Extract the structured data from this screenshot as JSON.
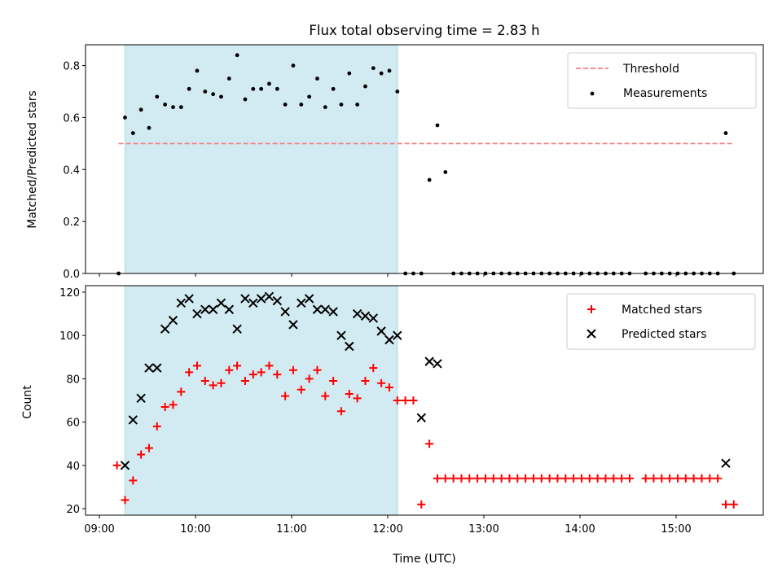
{
  "chart_data": [
    {
      "type": "scatter",
      "title": "Flux total observing time = 2.83 h",
      "xlabel": "",
      "ylabel": "Matched/Predicted stars",
      "ylim": [
        0,
        0.88
      ],
      "yticks": [
        "0.0",
        "0.2",
        "0.4",
        "0.6",
        "0.8"
      ],
      "xticks_shown": false,
      "shaded_interval_utc": [
        "09:16",
        "12:06"
      ],
      "shade_color": "#add8e6",
      "legend_position": "top-right",
      "threshold": {
        "name": "Threshold",
        "value": 0.5,
        "x_range": [
          "09:12",
          "15:36"
        ],
        "color": "#f08080"
      },
      "series": [
        {
          "name": "Measurements",
          "color": "#000000",
          "x": [
            "09:12",
            "09:16",
            "09:21",
            "09:26",
            "09:31",
            "09:36",
            "09:41",
            "09:46",
            "09:51",
            "09:56",
            "10:01",
            "10:06",
            "10:11",
            "10:16",
            "10:21",
            "10:26",
            "10:31",
            "10:36",
            "10:41",
            "10:46",
            "10:51",
            "10:56",
            "11:01",
            "11:06",
            "11:11",
            "11:16",
            "11:21",
            "11:26",
            "11:31",
            "11:36",
            "11:41",
            "11:46",
            "11:51",
            "11:56",
            "12:01",
            "12:06",
            "12:11",
            "12:16",
            "12:21",
            "12:26",
            "12:31",
            "12:36",
            "12:41",
            "12:46",
            "12:51",
            "12:56",
            "13:01",
            "13:06",
            "13:11",
            "13:16",
            "13:21",
            "13:26",
            "13:31",
            "13:36",
            "13:41",
            "13:46",
            "13:51",
            "13:56",
            "14:01",
            "14:06",
            "14:11",
            "14:16",
            "14:21",
            "14:26",
            "14:31",
            "14:41",
            "14:46",
            "14:51",
            "14:56",
            "15:01",
            "15:06",
            "15:11",
            "15:16",
            "15:21",
            "15:26",
            "15:31",
            "15:36"
          ],
          "y": [
            0.0,
            0.6,
            0.54,
            0.63,
            0.56,
            0.68,
            0.65,
            0.64,
            0.64,
            0.71,
            0.78,
            0.7,
            0.69,
            0.68,
            0.75,
            0.84,
            0.67,
            0.71,
            0.71,
            0.73,
            0.71,
            0.65,
            0.8,
            0.65,
            0.68,
            0.75,
            0.64,
            0.71,
            0.65,
            0.77,
            0.65,
            0.72,
            0.79,
            0.77,
            0.78,
            0.7,
            0.0,
            0.0,
            0.0,
            0.36,
            0.57,
            0.39,
            0.0,
            0.0,
            0.0,
            0.0,
            0.0,
            0.0,
            0.0,
            0.0,
            0.0,
            0.0,
            0.0,
            0.0,
            0.0,
            0.0,
            0.0,
            0.0,
            0.0,
            0.0,
            0.0,
            0.0,
            0.0,
            0.0,
            0.0,
            0.0,
            0.0,
            0.0,
            0.0,
            0.0,
            0.0,
            0.0,
            0.0,
            0.0,
            0.0,
            0.54,
            0.0
          ]
        }
      ]
    },
    {
      "type": "scatter",
      "title": "",
      "xlabel": "Time (UTC)",
      "ylabel": "Count",
      "ylim": [
        17,
        123
      ],
      "yticks": [
        "20",
        "40",
        "60",
        "80",
        "100",
        "120"
      ],
      "xticks": [
        "09:00",
        "10:00",
        "11:00",
        "12:00",
        "13:00",
        "14:00",
        "15:00"
      ],
      "shaded_interval_utc": [
        "09:16",
        "12:06"
      ],
      "shade_color": "#add8e6",
      "legend_position": "top-right",
      "series": [
        {
          "name": "Matched stars",
          "marker": "plus",
          "color": "#ff0000",
          "x": [
            "09:11",
            "09:16",
            "09:21",
            "09:26",
            "09:31",
            "09:36",
            "09:41",
            "09:46",
            "09:51",
            "09:56",
            "10:01",
            "10:06",
            "10:11",
            "10:16",
            "10:21",
            "10:26",
            "10:31",
            "10:36",
            "10:41",
            "10:46",
            "10:51",
            "10:56",
            "11:01",
            "11:06",
            "11:11",
            "11:16",
            "11:21",
            "11:26",
            "11:31",
            "11:36",
            "11:41",
            "11:46",
            "11:51",
            "11:56",
            "12:01",
            "12:06",
            "12:11",
            "12:16",
            "12:21",
            "12:26",
            "12:31",
            "12:36",
            "12:41",
            "12:46",
            "12:51",
            "12:56",
            "13:01",
            "13:06",
            "13:11",
            "13:16",
            "13:21",
            "13:26",
            "13:31",
            "13:36",
            "13:41",
            "13:46",
            "13:51",
            "13:56",
            "14:01",
            "14:06",
            "14:11",
            "14:16",
            "14:21",
            "14:26",
            "14:31",
            "14:41",
            "14:46",
            "14:51",
            "14:56",
            "15:01",
            "15:06",
            "15:11",
            "15:16",
            "15:21",
            "15:26",
            "15:31",
            "15:36"
          ],
          "y": [
            40,
            24,
            33,
            45,
            48,
            58,
            67,
            68,
            74,
            83,
            86,
            79,
            77,
            78,
            84,
            86,
            79,
            82,
            83,
            86,
            82,
            72,
            84,
            75,
            80,
            84,
            72,
            79,
            65,
            73,
            71,
            79,
            85,
            78,
            76,
            70,
            70,
            70,
            22,
            50,
            34,
            34,
            34,
            34,
            34,
            34,
            34,
            34,
            34,
            34,
            34,
            34,
            34,
            34,
            34,
            34,
            34,
            34,
            34,
            34,
            34,
            34,
            34,
            34,
            34,
            34,
            34,
            34,
            34,
            34,
            34,
            34,
            34,
            34,
            34,
            22,
            22
          ]
        },
        {
          "name": "Predicted stars",
          "marker": "x",
          "color": "#000000",
          "x": [
            "09:16",
            "09:21",
            "09:26",
            "09:31",
            "09:36",
            "09:41",
            "09:46",
            "09:51",
            "09:56",
            "10:01",
            "10:06",
            "10:11",
            "10:16",
            "10:21",
            "10:26",
            "10:31",
            "10:36",
            "10:41",
            "10:46",
            "10:51",
            "10:56",
            "11:01",
            "11:06",
            "11:11",
            "11:16",
            "11:21",
            "11:26",
            "11:31",
            "11:36",
            "11:41",
            "11:46",
            "11:51",
            "11:56",
            "12:01",
            "12:06",
            "12:21",
            "12:26",
            "12:31",
            "15:31"
          ],
          "y": [
            40,
            61,
            71,
            85,
            85,
            103,
            107,
            115,
            117,
            110,
            112,
            112,
            115,
            112,
            103,
            117,
            115,
            117,
            118,
            116,
            111,
            105,
            115,
            117,
            112,
            112,
            111,
            100,
            95,
            110,
            109,
            108,
            102,
            98,
            100,
            62,
            88,
            87,
            41
          ]
        }
      ]
    }
  ]
}
